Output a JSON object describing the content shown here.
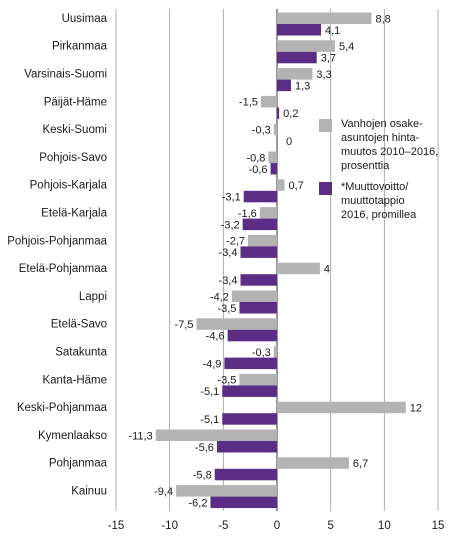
{
  "chart_data": {
    "type": "bar",
    "orientation": "horizontal",
    "categories": [
      "Uusimaa",
      "Pirkanmaa",
      "Varsinais-Suomi",
      "Päijät-Häme",
      "Keski-Suomi",
      "Pohjois-Savo",
      "Pohjois-Karjala",
      "Etelä-Karjala",
      "Pohjois-Pohjanmaa",
      "Etelä-Pohjanmaa",
      "Lappi",
      "Etelä-Savo",
      "Satakunta",
      "Kanta-Häme",
      "Keski-Pohjanmaa",
      "Kymenlaakso",
      "Pohjanmaa",
      "Kainuu"
    ],
    "series": [
      {
        "name": "Vanhojen osake-asuntojen hinta-muutos 2010–2016, prosenttia",
        "legend_lines": [
          "Vanhojen osake-",
          "asuntojen hinta-",
          "muutos 2010–2016,",
          "prosenttia"
        ],
        "color": "#b3b3b3",
        "values": [
          8.8,
          5.4,
          3.3,
          -1.5,
          -0.3,
          -0.8,
          0.7,
          -1.6,
          -2.7,
          4,
          -4.2,
          -7.5,
          -0.3,
          -3.5,
          12,
          -11.3,
          6.7,
          -9.4
        ],
        "labels": [
          "8,8",
          "5,4",
          "3,3",
          "-1,5",
          "-0,3",
          "-0,8",
          "0,7",
          "-1,6",
          "-2,7",
          "4",
          "-4,2",
          "-7,5",
          "-0,3",
          "-3,5",
          "12",
          "-11,3",
          "6,7",
          "-9,4"
        ]
      },
      {
        "name": "*Muuttovoitto/ muuttotappio 2016, promillea",
        "legend_lines": [
          "*Muuttovoitto/",
          "muuttotappio",
          "2016, promillea"
        ],
        "color": "#5b2d84",
        "values": [
          4.1,
          3.7,
          1.3,
          0.2,
          0,
          -0.6,
          -3.1,
          -3.2,
          -3.4,
          -3.4,
          -3.5,
          -4.6,
          -4.9,
          -5.1,
          -5.1,
          -5.6,
          -5.8,
          -6.2
        ],
        "labels": [
          "4,1",
          "3,7",
          "1,3",
          "0,2",
          "0",
          "-0,6",
          "-3,1",
          "-3,2",
          "-3,4",
          "-3,4",
          "-3,5",
          "-4,6",
          "-4,9",
          "-5,1",
          "-5,1",
          "-5,6",
          "-5,8",
          "-6,2"
        ]
      }
    ],
    "xlim": [
      -15,
      15
    ],
    "xticks": [
      "-15",
      "-10",
      "-5",
      "0",
      "5",
      "10",
      "15"
    ],
    "xtick_values": [
      -15,
      -10,
      -5,
      0,
      5,
      10,
      15
    ],
    "grid": "vertical",
    "legend": "right",
    "title": "",
    "xlabel": "",
    "ylabel": ""
  }
}
